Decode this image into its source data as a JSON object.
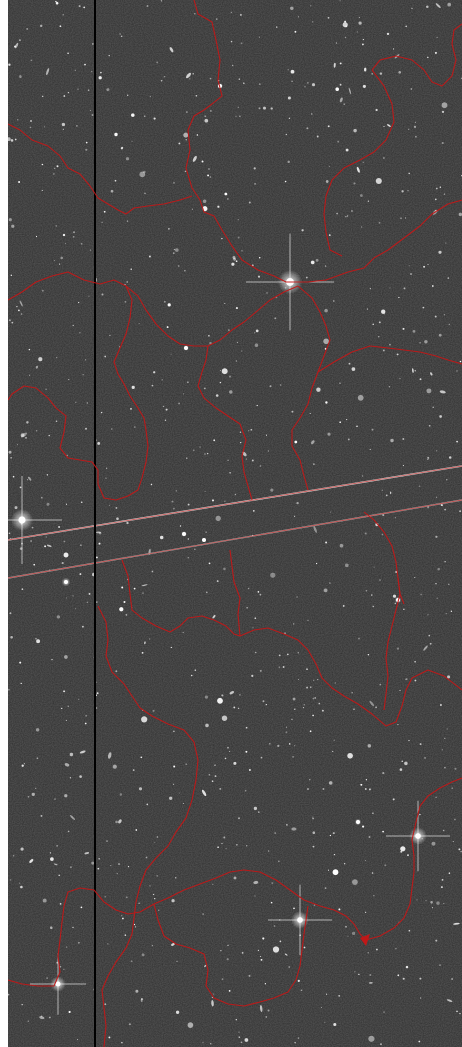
{
  "image": {
    "kind": "astronomical-field",
    "background_color": "#2c2c2c",
    "star_color": "#ffffff",
    "boundary_color": "#c01818",
    "satellite_trail_color": "#f2f2f2",
    "dead_column_color": "#000000"
  }
}
